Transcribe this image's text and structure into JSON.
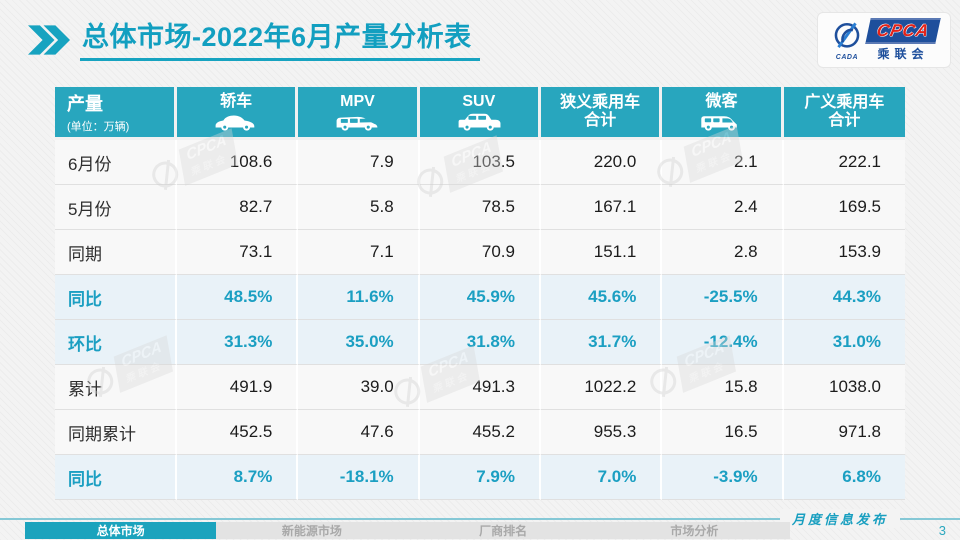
{
  "slide": {
    "title_primary": "总体市场",
    "title_rest": "-2022年6月产量分析表",
    "footer_note": "月度信息发布",
    "page_number": "3"
  },
  "logo": {
    "acronym": "CPCA",
    "subtitle": "乘联会",
    "emblem_caption": "CADA"
  },
  "watermark": {
    "acronym": "CPCA",
    "subtitle": "乘联会"
  },
  "footer_tabs": [
    {
      "label": "总体市场",
      "active": true
    },
    {
      "label": "新能源市场",
      "active": false
    },
    {
      "label": "厂商排名",
      "active": false
    },
    {
      "label": "市场分析",
      "active": false
    }
  ],
  "table": {
    "header": {
      "label_title": "产量",
      "label_unit": "(单位：万辆)",
      "columns": [
        {
          "key": "sedan",
          "label": "轿车",
          "icon": "sedan-icon"
        },
        {
          "key": "mpv",
          "label": "MPV",
          "icon": "mpv-icon"
        },
        {
          "key": "suv",
          "label": "SUV",
          "icon": "suv-icon"
        },
        {
          "key": "narrow-total",
          "label": "狭义乘用车",
          "label2": "合计"
        },
        {
          "key": "microvan",
          "label": "微客",
          "icon": "microvan-icon"
        },
        {
          "key": "broad-total",
          "label": "广义乘用车",
          "label2": "合计"
        }
      ]
    },
    "rows": [
      {
        "label": "6月份",
        "type": "value",
        "cells": [
          "108.6",
          "7.9",
          "103.5",
          "220.0",
          "2.1",
          "222.1"
        ]
      },
      {
        "label": "5月份",
        "type": "value",
        "cells": [
          "82.7",
          "5.8",
          "78.5",
          "167.1",
          "2.4",
          "169.5"
        ]
      },
      {
        "label": "同期",
        "type": "value",
        "cells": [
          "73.1",
          "7.1",
          "70.9",
          "151.1",
          "2.8",
          "153.9"
        ]
      },
      {
        "label": "同比",
        "type": "percent",
        "cells": [
          "48.5%",
          "11.6%",
          "45.9%",
          "45.6%",
          "-25.5%",
          "44.3%"
        ]
      },
      {
        "label": "环比",
        "type": "percent",
        "cells": [
          "31.3%",
          "35.0%",
          "31.8%",
          "31.7%",
          "-12.4%",
          "31.0%"
        ]
      },
      {
        "label": "累计",
        "type": "value",
        "cells": [
          "491.9",
          "39.0",
          "491.3",
          "1022.2",
          "15.8",
          "1038.0"
        ]
      },
      {
        "label": "同期累计",
        "type": "value",
        "cells": [
          "452.5",
          "47.6",
          "455.2",
          "955.3",
          "16.5",
          "971.8"
        ]
      },
      {
        "label": "同比",
        "type": "percent",
        "cells": [
          "8.7%",
          "-18.1%",
          "7.9%",
          "7.0%",
          "-3.9%",
          "6.8%"
        ]
      }
    ]
  },
  "colors": {
    "teal_header": "#28a6be",
    "teal_title": "#129fc0",
    "percent_row_bg": "#e9f2f8",
    "percent_text": "#1b9fc2",
    "logo_blue": "#1e4f9c",
    "logo_red": "#e2231a",
    "footer_line": "#85c8d6"
  }
}
